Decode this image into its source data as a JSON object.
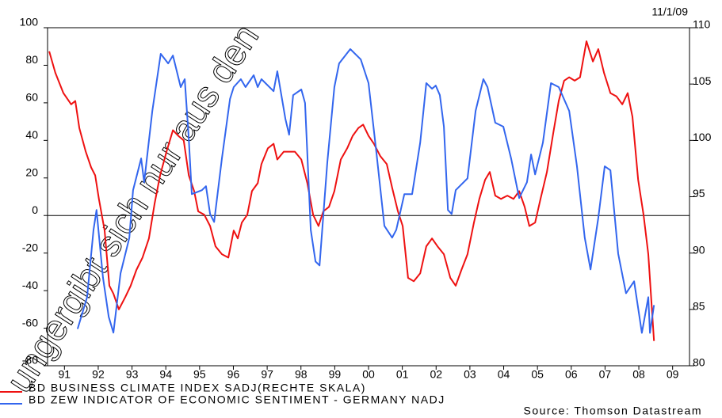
{
  "chart_data": {
    "type": "line",
    "date": "11/1/09",
    "source": "Source: Thomson Datastream",
    "watermark": "ungergibt sich nur aus den",
    "xlim": [
      1991,
      2010
    ],
    "xticks": [
      {
        "value": 1991.5,
        "label": "91"
      },
      {
        "value": 1992.5,
        "label": "92"
      },
      {
        "value": 1993.5,
        "label": "93"
      },
      {
        "value": 1994.5,
        "label": "94"
      },
      {
        "value": 1995.5,
        "label": "95"
      },
      {
        "value": 1996.5,
        "label": "96"
      },
      {
        "value": 1997.5,
        "label": "97"
      },
      {
        "value": 1998.5,
        "label": "98"
      },
      {
        "value": 1999.5,
        "label": "99"
      },
      {
        "value": 2000.5,
        "label": "00"
      },
      {
        "value": 2001.5,
        "label": "01"
      },
      {
        "value": 2002.5,
        "label": "02"
      },
      {
        "value": 2003.5,
        "label": "03"
      },
      {
        "value": 2004.5,
        "label": "04"
      },
      {
        "value": 2005.5,
        "label": "05"
      },
      {
        "value": 2006.5,
        "label": "06"
      },
      {
        "value": 2007.5,
        "label": "07"
      },
      {
        "value": 2008.5,
        "label": "08"
      },
      {
        "value": 2009.5,
        "label": "09"
      }
    ],
    "ylim": [
      -80,
      100
    ],
    "yticks": [
      -80,
      -60,
      -40,
      -20,
      0,
      20,
      40,
      60,
      80,
      100
    ],
    "y2lim": [
      80,
      110
    ],
    "y2ticks": [
      80,
      85,
      90,
      95,
      100,
      105,
      110
    ],
    "series": [
      {
        "name": "BD BUSINESS CLIMATE INDEX SADJ(RECHTE SKALA)",
        "color": "#ee1111",
        "axis": "y2",
        "x": [
          1991.05,
          1991.23,
          1991.47,
          1991.7,
          1991.82,
          1991.94,
          1992.13,
          1992.29,
          1992.41,
          1992.52,
          1992.69,
          1992.83,
          1992.95,
          1993.11,
          1993.3,
          1993.46,
          1993.63,
          1993.81,
          1994.0,
          1994.17,
          1994.33,
          1994.52,
          1994.71,
          1994.87,
          1995.03,
          1995.18,
          1995.34,
          1995.46,
          1995.64,
          1995.81,
          1995.97,
          1996.16,
          1996.35,
          1996.51,
          1996.63,
          1996.75,
          1996.91,
          1997.05,
          1997.22,
          1997.33,
          1997.52,
          1997.69,
          1997.8,
          1997.99,
          1998.15,
          1998.32,
          1998.51,
          1998.69,
          1998.86,
          1999.02,
          1999.16,
          1999.33,
          1999.49,
          1999.68,
          1999.87,
          2000.03,
          2000.2,
          2000.34,
          2000.5,
          2000.66,
          2000.85,
          2001.04,
          2001.2,
          2001.37,
          2001.51,
          2001.67,
          2001.84,
          2002.03,
          2002.21,
          2002.38,
          2002.54,
          2002.73,
          2002.92,
          2003.08,
          2003.25,
          2003.43,
          2003.62,
          2003.78,
          2003.95,
          2004.09,
          2004.25,
          2004.42,
          2004.61,
          2004.79,
          2004.96,
          2005.12,
          2005.26,
          2005.43,
          2005.59,
          2005.78,
          2005.97,
          2006.13,
          2006.29,
          2006.44,
          2006.6,
          2006.76,
          2006.95,
          2007.14,
          2007.3,
          2007.47,
          2007.66,
          2007.84,
          2008.01,
          2008.17,
          2008.31,
          2008.48,
          2008.64,
          2008.78,
          2008.95
        ],
        "values": [
          107.9,
          106.0,
          104.2,
          103.2,
          103.5,
          101.1,
          99.0,
          97.6,
          96.9,
          94.8,
          92.0,
          87.1,
          86.4,
          85.0,
          86.1,
          87.1,
          88.5,
          89.6,
          91.3,
          94.4,
          96.9,
          99.0,
          100.9,
          100.4,
          100.0,
          96.9,
          95.5,
          93.7,
          93.4,
          92.4,
          90.6,
          89.9,
          89.6,
          92.0,
          91.3,
          92.7,
          93.4,
          95.5,
          96.2,
          97.9,
          99.3,
          99.7,
          98.3,
          99.0,
          99.0,
          99.0,
          98.3,
          96.2,
          93.4,
          92.4,
          93.7,
          94.1,
          95.5,
          98.3,
          99.3,
          100.4,
          101.1,
          101.4,
          100.4,
          99.7,
          98.6,
          97.9,
          95.8,
          93.7,
          92.4,
          87.8,
          87.5,
          88.2,
          90.6,
          91.3,
          90.6,
          89.9,
          87.8,
          87.1,
          88.5,
          89.9,
          92.7,
          94.8,
          96.5,
          97.2,
          95.1,
          94.8,
          95.1,
          94.8,
          95.5,
          94.1,
          92.4,
          92.7,
          94.8,
          97.2,
          100.7,
          103.5,
          105.3,
          105.6,
          105.3,
          105.6,
          108.8,
          107.0,
          108.1,
          106.0,
          104.2,
          103.9,
          103.2,
          104.2,
          102.1,
          96.5,
          93.4,
          89.9,
          82.2
        ]
      },
      {
        "name": "BD ZEW INDICATOR OF ECONOMIC SENTIMENT - GERMANY NADJ",
        "color": "#3366ee",
        "x": [
          1991.89,
          1992.17,
          1992.36,
          1992.45,
          1992.64,
          1992.81,
          1992.95,
          1993.16,
          1993.42,
          1993.53,
          1993.77,
          1993.86,
          1994.1,
          1994.35,
          1994.57,
          1994.71,
          1994.94,
          1995.06,
          1995.18,
          1995.27,
          1995.57,
          1995.69,
          1995.81,
          1995.93,
          1996.16,
          1996.4,
          1996.51,
          1996.72,
          1996.86,
          1997.1,
          1997.22,
          1997.33,
          1997.69,
          1997.8,
          1998.04,
          1998.15,
          1998.27,
          1998.51,
          1998.62,
          1998.79,
          1998.93,
          1999.05,
          1999.28,
          1999.49,
          1999.63,
          1999.96,
          2000.27,
          2000.5,
          2000.74,
          2000.97,
          2001.2,
          2001.32,
          2001.56,
          2001.79,
          2002.03,
          2002.21,
          2002.38,
          2002.49,
          2002.61,
          2002.73,
          2002.85,
          2002.96,
          2003.08,
          2003.43,
          2003.67,
          2003.9,
          2004.02,
          2004.25,
          2004.49,
          2004.72,
          2004.96,
          2005.19,
          2005.31,
          2005.43,
          2005.66,
          2005.9,
          2006.13,
          2006.44,
          2006.67,
          2006.9,
          2007.07,
          2007.3,
          2007.49,
          2007.66,
          2007.89,
          2008.12,
          2008.36,
          2008.59,
          2008.78,
          2008.83,
          2008.95
        ],
        "values": [
          -60.4,
          -43.5,
          -7.6,
          2.9,
          -32.9,
          -54.0,
          -62.4,
          -30.8,
          -11.8,
          13.5,
          30.4,
          17.7,
          55.7,
          86.1,
          81.0,
          85.2,
          68.4,
          72.6,
          40.9,
          11.4,
          13.5,
          15.6,
          0.8,
          -3.4,
          30.4,
          62.0,
          68.4,
          72.6,
          68.4,
          74.7,
          68.4,
          72.6,
          66.2,
          76.8,
          51.5,
          43.0,
          64.1,
          67.1,
          59.9,
          -7.6,
          -24.5,
          -26.6,
          28.3,
          68.4,
          81.0,
          88.6,
          83.1,
          70.5,
          32.5,
          -5.5,
          -11.8,
          -7.6,
          11.4,
          11.4,
          38.8,
          70.5,
          67.5,
          69.2,
          64.1,
          47.3,
          2.9,
          0.8,
          13.5,
          19.8,
          55.7,
          72.6,
          68.4,
          49.4,
          47.3,
          30.4,
          9.3,
          17.7,
          32.5,
          21.9,
          38.8,
          70.5,
          68.4,
          55.7,
          26.2,
          -11.8,
          -28.7,
          -1.3,
          26.2,
          24.1,
          -20.3,
          -41.4,
          -35.0,
          -62.5,
          -43.5,
          -62.5,
          -47.7
        ]
      }
    ]
  }
}
